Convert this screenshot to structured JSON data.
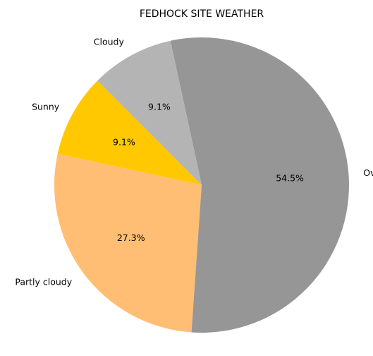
{
  "chart_data": {
    "type": "pie",
    "title": "FEDHOCK SITE WEATHER",
    "categories": [
      "Sunny",
      "Partly cloudy",
      "Overcast",
      "Cloudy"
    ],
    "values": [
      9.1,
      27.3,
      54.5,
      9.1
    ],
    "labels": [
      "9.1%",
      "27.3%",
      "54.5%",
      "9.1%"
    ],
    "colors": [
      "#ffc800",
      "#ffbe73",
      "#969696",
      "#b4b4b4"
    ],
    "start_angle_deg": 135,
    "direction": "counterclockwise",
    "legend": "none"
  }
}
